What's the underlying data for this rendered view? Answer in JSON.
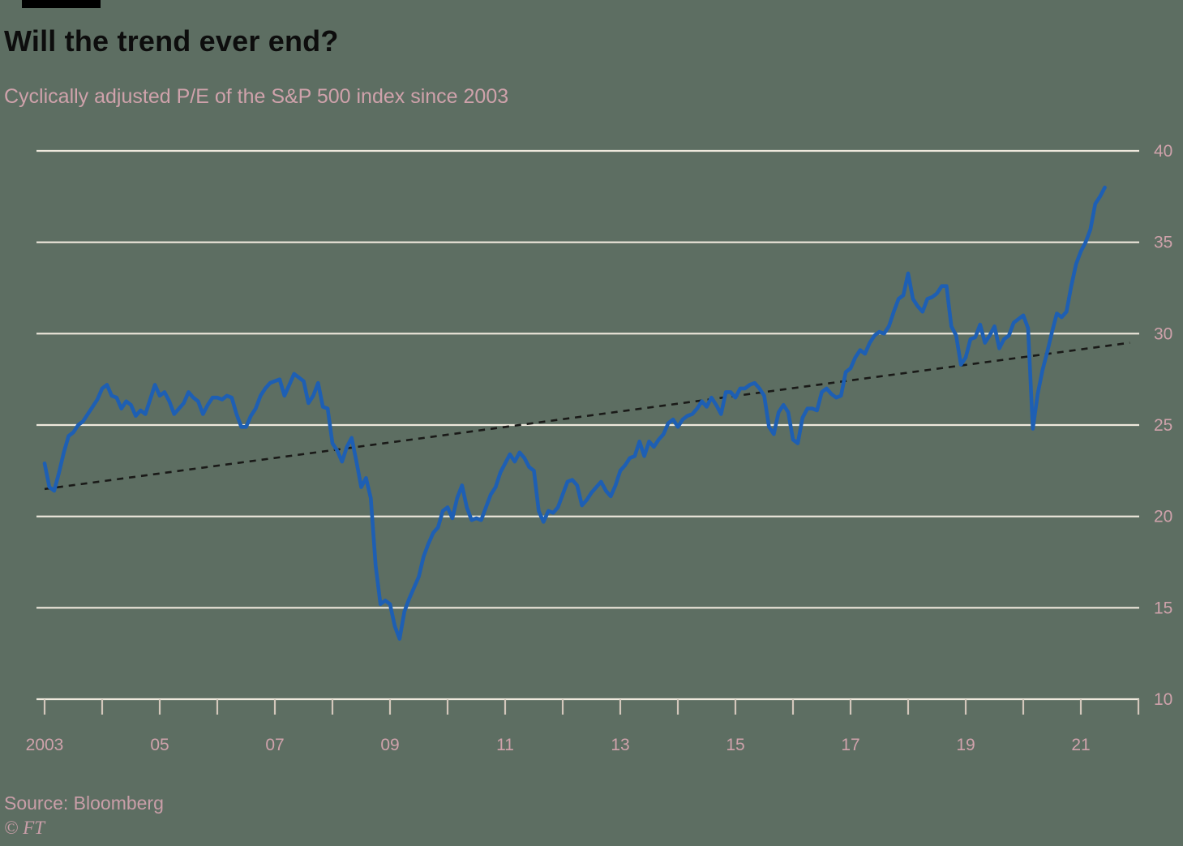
{
  "header": {
    "title": "Will the trend ever end?",
    "subtitle": "Cyclically adjusted P/E of the S&P 500 index since 2003"
  },
  "footer": {
    "source": "Source: Bloomberg",
    "credit": "© FT"
  },
  "colors": {
    "background": "#5d6e62",
    "title": "#0d0d0d",
    "accent_pink": "#cfa2ab",
    "source_pink": "#c99ea8",
    "gridline": "#efe9dd",
    "axis_tick": "#d3c7bb",
    "series_blue": "#1e5fb3",
    "trend_black": "#1a1a18",
    "brand_bar": "#000000"
  },
  "chart_data": {
    "type": "line",
    "title": "Will the trend ever end?",
    "subtitle": "Cyclically adjusted P/E of the S&P 500 index since 2003",
    "xlabel": "",
    "ylabel": "",
    "ylim": [
      10,
      40
    ],
    "xlim": [
      2003,
      2022
    ],
    "grid": "horizontal",
    "legend": "none",
    "yticks": [
      10,
      15,
      20,
      25,
      30,
      35,
      40
    ],
    "x_axis": {
      "tick_years": [
        2003,
        2004,
        2005,
        2006,
        2007,
        2008,
        2009,
        2010,
        2011,
        2012,
        2013,
        2014,
        2015,
        2016,
        2017,
        2018,
        2019,
        2020,
        2021,
        2022
      ],
      "labels": [
        {
          "t": 2003,
          "label": "2003"
        },
        {
          "t": 2005,
          "label": "05"
        },
        {
          "t": 2007,
          "label": "07"
        },
        {
          "t": 2009,
          "label": "09"
        },
        {
          "t": 2011,
          "label": "11"
        },
        {
          "t": 2013,
          "label": "13"
        },
        {
          "t": 2015,
          "label": "15"
        },
        {
          "t": 2017,
          "label": "17"
        },
        {
          "t": 2019,
          "label": "19"
        },
        {
          "t": 2021,
          "label": "21"
        }
      ]
    },
    "series": [
      {
        "name": "Cyclically adjusted P/E of S&P 500",
        "start_year": 2003,
        "interval_months": 1,
        "values": [
          22.9,
          21.6,
          21.4,
          22.4,
          23.5,
          24.4,
          24.6,
          25.0,
          25.2,
          25.6,
          26.0,
          26.4,
          27.0,
          27.2,
          26.6,
          26.5,
          25.9,
          26.3,
          26.1,
          25.5,
          25.8,
          25.6,
          26.4,
          27.2,
          26.6,
          26.8,
          26.3,
          25.6,
          25.9,
          26.2,
          26.8,
          26.5,
          26.3,
          25.6,
          26.1,
          26.5,
          26.5,
          26.4,
          26.6,
          26.5,
          25.6,
          24.9,
          24.9,
          25.5,
          25.9,
          26.6,
          27.0,
          27.3,
          27.4,
          27.5,
          26.6,
          27.2,
          27.8,
          27.6,
          27.4,
          26.2,
          26.6,
          27.3,
          26.0,
          25.9,
          24.0,
          23.6,
          23.0,
          23.8,
          24.3,
          23.0,
          21.6,
          22.1,
          21.0,
          17.3,
          15.2,
          15.4,
          15.2,
          14.0,
          13.3,
          14.8,
          15.5,
          16.1,
          16.7,
          17.8,
          18.5,
          19.1,
          19.4,
          20.3,
          20.5,
          19.9,
          21.0,
          21.7,
          20.5,
          19.8,
          19.9,
          19.8,
          20.5,
          21.2,
          21.6,
          22.4,
          22.9,
          23.4,
          23.0,
          23.5,
          23.2,
          22.7,
          22.5,
          20.3,
          19.7,
          20.3,
          20.2,
          20.5,
          21.2,
          21.9,
          22.0,
          21.7,
          20.6,
          20.9,
          21.3,
          21.6,
          21.9,
          21.4,
          21.1,
          21.7,
          22.5,
          22.8,
          23.2,
          23.3,
          24.1,
          23.3,
          24.1,
          23.8,
          24.2,
          24.5,
          25.1,
          25.3,
          24.9,
          25.3,
          25.5,
          25.6,
          25.9,
          26.3,
          26.0,
          26.5,
          26.1,
          25.6,
          26.8,
          26.8,
          26.5,
          27.0,
          27.0,
          27.2,
          27.3,
          27.0,
          26.6,
          24.9,
          24.5,
          25.7,
          26.1,
          25.7,
          24.2,
          24.0,
          25.4,
          25.9,
          25.9,
          25.8,
          26.8,
          27.0,
          26.7,
          26.5,
          26.6,
          27.9,
          28.1,
          28.7,
          29.1,
          28.9,
          29.5,
          29.9,
          30.1,
          30.0,
          30.4,
          31.2,
          31.9,
          32.1,
          33.3,
          31.9,
          31.5,
          31.2,
          31.9,
          32.0,
          32.2,
          32.6,
          32.6,
          30.4,
          29.9,
          28.3,
          28.7,
          29.7,
          29.8,
          30.5,
          29.5,
          29.9,
          30.4,
          29.2,
          29.7,
          29.9,
          30.6,
          30.8,
          31.0,
          30.3,
          24.8,
          26.7,
          28.0,
          29.0,
          30.1,
          31.1,
          30.9,
          31.2,
          32.6,
          33.8,
          34.5,
          35.0,
          35.7,
          37.1,
          37.5,
          38.0
        ]
      }
    ],
    "trend_line": {
      "style": "dashed",
      "t_start": 2003.0,
      "v_start": 21.5,
      "t_end": 2021.85,
      "v_end": 29.5
    }
  }
}
